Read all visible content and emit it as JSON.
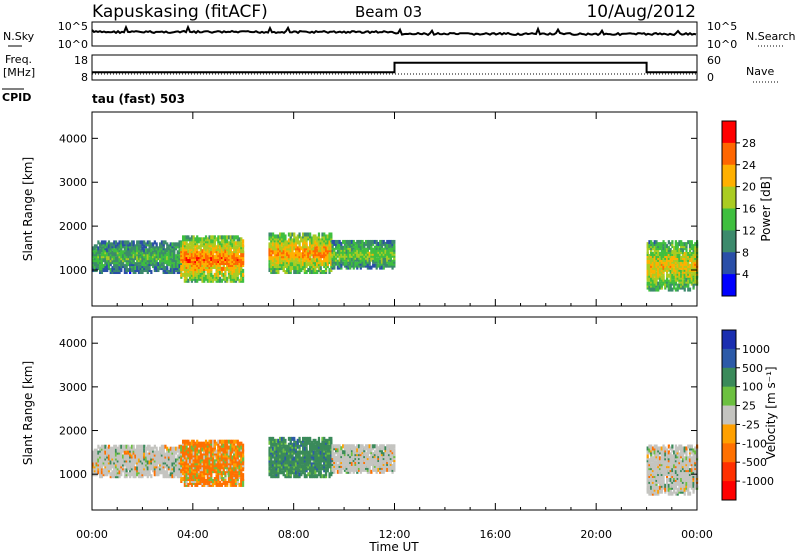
{
  "header": {
    "station": "Kapuskasing (fitACF)",
    "beam": "Beam 03",
    "date": "10/Aug/2012"
  },
  "noise_panel": {
    "left_label": "N.Sky",
    "left_ticks": [
      "10^5",
      "10^0"
    ],
    "right_label": "N.Search",
    "right_ticks": [
      "10^5",
      "10^0"
    ]
  },
  "freq_panel": {
    "left_label_line1": "Freq.",
    "left_label_line2": "[MHz]",
    "left_ticks": [
      "18",
      "8"
    ],
    "right_label": "Nave",
    "right_ticks": [
      "60",
      "0"
    ]
  },
  "cpid": {
    "label": "CPID",
    "mode": "tau (fast) 503"
  },
  "power_panel": {
    "ylabel": "Slant Range [km]",
    "yticks": [
      "4000",
      "3000",
      "2000",
      "1000"
    ],
    "colorbar_label": "Power [dB]",
    "colorbar_ticks": [
      "28",
      "24",
      "20",
      "16",
      "12",
      "8",
      "4"
    ],
    "colors": [
      "#0000ff",
      "#2a4fa8",
      "#3c8a6c",
      "#3fbf3f",
      "#aacc22",
      "#ffb000",
      "#ff6600",
      "#ff0000"
    ]
  },
  "velocity_panel": {
    "ylabel": "Slant Range [km]",
    "yticks": [
      "4000",
      "3000",
      "2000",
      "1000"
    ],
    "colorbar_label": "Velocity [m s⁻¹]",
    "colorbar_ticks": [
      "1000",
      "500",
      "100",
      "25",
      "-25",
      "-100",
      "-500",
      "-1000"
    ],
    "colors": [
      "#1a2eb0",
      "#2c5aa8",
      "#3a8a5a",
      "#6cc040",
      "#c4c4c0",
      "#ffa000",
      "#ff7000",
      "#ff3000",
      "#ff0000"
    ]
  },
  "x_axis": {
    "label": "Time UT",
    "ticks": [
      "00:00",
      "04:00",
      "08:00",
      "12:00",
      "16:00",
      "20:00",
      "00:00"
    ]
  },
  "chart_data": {
    "type": "heatmap",
    "title": "Kapuskasing (fitACF) Beam 03 10/Aug/2012",
    "xlabel": "Time UT",
    "ylabel": "Slant Range [km]",
    "xlim": [
      "00:00",
      "24:00"
    ],
    "ylim": [
      180,
      4600
    ],
    "frequency_mhz": [
      {
        "t": 0.0,
        "freq": 10.5
      },
      {
        "t": 12.0,
        "freq": 10.5
      },
      {
        "t": 12.0,
        "freq": 15.5
      },
      {
        "t": 22.0,
        "freq": 15.5
      },
      {
        "t": 22.0,
        "freq": 10.5
      },
      {
        "t": 24.0,
        "freq": 10.5
      }
    ],
    "power_colorbar": {
      "label": "Power [dB]",
      "range": [
        0,
        32
      ],
      "ticks": [
        4,
        8,
        12,
        16,
        20,
        24,
        28
      ]
    },
    "velocity_colorbar": {
      "label": "Velocity [m s^-1]",
      "ticks": [
        -1000,
        -500,
        -100,
        -25,
        25,
        100,
        500,
        1000
      ]
    },
    "echo_regions": [
      {
        "t_start": 0.0,
        "t_end": 3.5,
        "range_min": 1000,
        "range_max": 1700,
        "power_db_typ": 12,
        "velocity_typ": 25
      },
      {
        "t_start": 3.5,
        "t_end": 6.0,
        "range_min": 800,
        "range_max": 1800,
        "power_db_typ": 22,
        "velocity_typ": -150
      },
      {
        "t_start": 7.0,
        "t_end": 9.5,
        "range_min": 1000,
        "range_max": 1900,
        "power_db_typ": 20,
        "velocity_typ": 300
      },
      {
        "t_start": 9.5,
        "t_end": 12.0,
        "range_min": 1100,
        "range_max": 1700,
        "power_db_typ": 14,
        "velocity_typ": 25
      },
      {
        "t_start": 22.0,
        "t_end": 24.0,
        "range_min": 600,
        "range_max": 1700,
        "power_db_typ": 18,
        "velocity_typ": 25
      }
    ]
  }
}
